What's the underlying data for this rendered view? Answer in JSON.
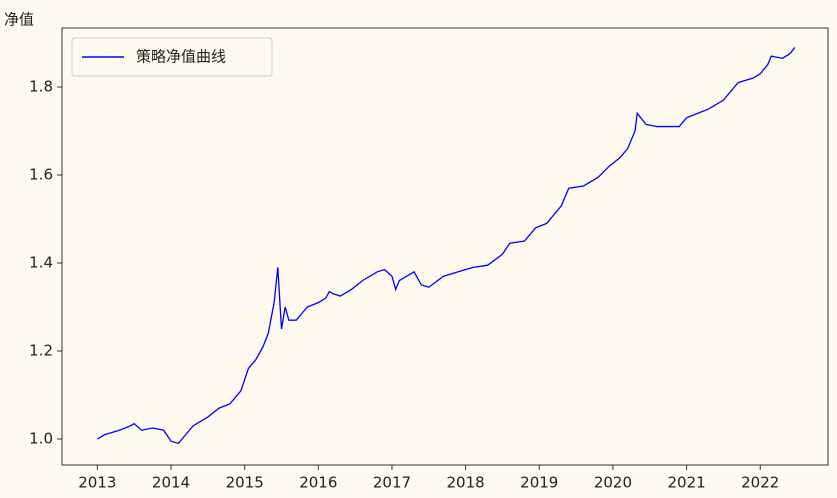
{
  "chart_data": {
    "type": "line",
    "y_label": "净值",
    "x": [
      2013.0,
      2013.1,
      2013.3,
      2013.45,
      2013.5,
      2013.6,
      2013.75,
      2013.9,
      2014.0,
      2014.1,
      2014.2,
      2014.3,
      2014.5,
      2014.65,
      2014.8,
      2014.95,
      2015.05,
      2015.15,
      2015.25,
      2015.32,
      2015.4,
      2015.45,
      2015.5,
      2015.55,
      2015.6,
      2015.7,
      2015.85,
      2016.0,
      2016.1,
      2016.15,
      2016.2,
      2016.3,
      2016.45,
      2016.6,
      2016.8,
      2016.9,
      2017.0,
      2017.05,
      2017.1,
      2017.2,
      2017.3,
      2017.4,
      2017.5,
      2017.7,
      2017.9,
      2018.1,
      2018.3,
      2018.5,
      2018.6,
      2018.8,
      2018.95,
      2019.1,
      2019.3,
      2019.4,
      2019.6,
      2019.8,
      2019.95,
      2020.1,
      2020.2,
      2020.3,
      2020.33,
      2020.45,
      2020.6,
      2020.75,
      2020.9,
      2021.0,
      2021.15,
      2021.3,
      2021.5,
      2021.7,
      2021.9,
      2022.0,
      2022.1,
      2022.15,
      2022.3,
      2022.4,
      2022.47
    ],
    "series": [
      {
        "name": "策略净值曲线",
        "color": "#0000ff",
        "values": [
          1.0,
          1.01,
          1.02,
          1.03,
          1.035,
          1.02,
          1.025,
          1.02,
          0.995,
          0.99,
          1.01,
          1.03,
          1.05,
          1.07,
          1.08,
          1.11,
          1.16,
          1.18,
          1.21,
          1.24,
          1.31,
          1.39,
          1.25,
          1.3,
          1.27,
          1.27,
          1.3,
          1.31,
          1.32,
          1.335,
          1.33,
          1.325,
          1.34,
          1.36,
          1.38,
          1.385,
          1.37,
          1.34,
          1.36,
          1.37,
          1.38,
          1.35,
          1.345,
          1.37,
          1.38,
          1.39,
          1.395,
          1.42,
          1.445,
          1.45,
          1.48,
          1.49,
          1.53,
          1.57,
          1.575,
          1.595,
          1.62,
          1.64,
          1.66,
          1.7,
          1.74,
          1.715,
          1.71,
          1.71,
          1.71,
          1.73,
          1.74,
          1.75,
          1.77,
          1.81,
          1.82,
          1.83,
          1.85,
          1.87,
          1.865,
          1.875,
          1.89
        ]
      }
    ],
    "xlim": [
      2012.52,
      2022.92
    ],
    "ylim": [
      0.941,
      1.934
    ],
    "xticks": [
      2013,
      2014,
      2015,
      2016,
      2017,
      2018,
      2019,
      2020,
      2021,
      2022
    ],
    "yticks": [
      {
        "value": 1.0,
        "label": "1.0"
      },
      {
        "value": 1.2,
        "label": "1.2"
      },
      {
        "value": 1.4,
        "label": "1.4"
      },
      {
        "value": 1.6,
        "label": "1.6"
      },
      {
        "value": 1.8,
        "label": "1.8"
      }
    ],
    "legend": "upper left"
  }
}
